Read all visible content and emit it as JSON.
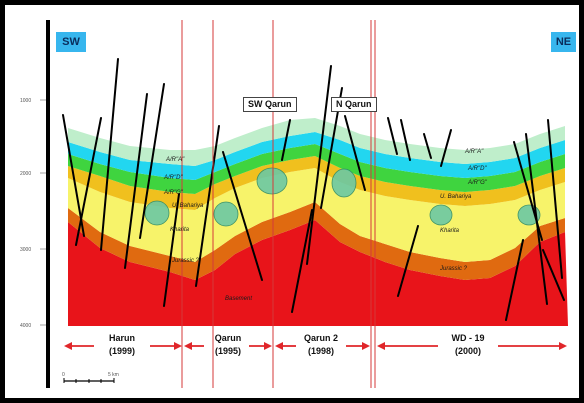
{
  "direction_tags": {
    "left": "SW",
    "right": "NE"
  },
  "callouts": {
    "sw_qarun": "SW Qarun",
    "n_qarun": "N Qarun"
  },
  "depth_ticks": [
    "1000",
    "2000",
    "3000",
    "4000"
  ],
  "layer_labels": {
    "a_r_a": "A/R\"A\"",
    "a_r_d": "A/R\"D\"",
    "a_r_g": "A/R\"G\"",
    "u_bahariya": "U. Bahariya",
    "kharita": "Kharita",
    "jurassic": "Jurassic ?",
    "basement": "Basement"
  },
  "sections": [
    {
      "name": "Harun",
      "year": "(1999)"
    },
    {
      "name": "Qarun",
      "year": "(1995)"
    },
    {
      "name": "Qarun 2",
      "year": "(1998)"
    },
    {
      "name": "WD - 19",
      "year": "(2000)"
    }
  ],
  "scale_bar": {
    "start": "0",
    "end": "5 km"
  },
  "colors": {
    "basement": "#e8141a",
    "jurassic": "#e06a10",
    "kharita": "#f7f36a",
    "u_bahariya": "#f0c01e",
    "a_r_g": "#3fd43f",
    "a_r_d": "#22d6f0",
    "a_r_a": "#bfeecb",
    "direction_tag": "#37b6ee",
    "well_line": "#d53a3a"
  }
}
